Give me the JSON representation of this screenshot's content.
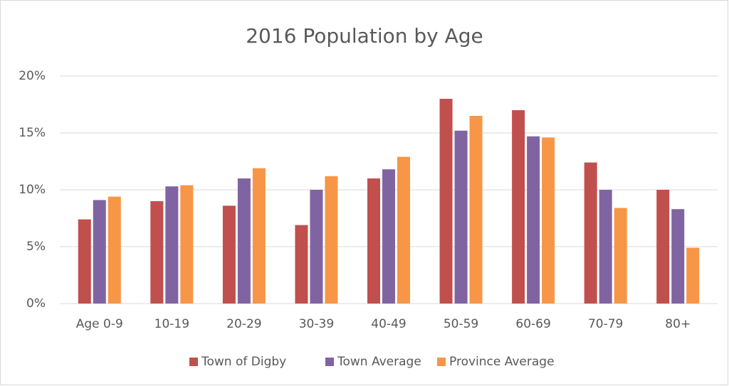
{
  "chart_data": {
    "type": "bar",
    "title": "2016 Population by Age",
    "categories": [
      "Age 0-9",
      "10-19",
      "20-29",
      "30-39",
      "40-49",
      "50-59",
      "60-69",
      "70-79",
      "80+"
    ],
    "series": [
      {
        "name": "Town of Digby",
        "color": "#c0504d",
        "values": [
          7.4,
          9.0,
          8.6,
          6.9,
          11.0,
          18.0,
          17.0,
          12.4,
          10.0
        ]
      },
      {
        "name": "Town Average",
        "color": "#8064a2",
        "values": [
          9.1,
          10.3,
          11.0,
          10.0,
          11.8,
          15.2,
          14.7,
          10.0,
          8.3
        ]
      },
      {
        "name": "Province Average",
        "color": "#f79646",
        "values": [
          9.4,
          10.4,
          11.9,
          11.2,
          12.9,
          16.5,
          14.6,
          8.4,
          4.9
        ]
      }
    ],
    "ylim": [
      0,
      20
    ],
    "yticks": [
      {
        "value": 0,
        "label": "0%"
      },
      {
        "value": 5,
        "label": "5%"
      },
      {
        "value": 10,
        "label": "10%"
      },
      {
        "value": 15,
        "label": "15%"
      },
      {
        "value": 20,
        "label": "20%"
      }
    ],
    "grid": true,
    "legend": "bottom"
  }
}
